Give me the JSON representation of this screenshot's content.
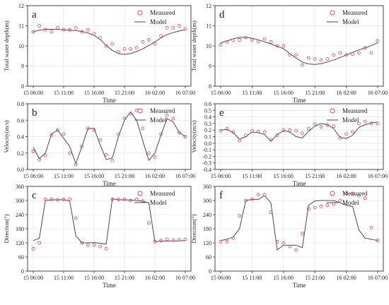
{
  "x_categories": [
    "15 06:00",
    "15 11:00",
    "15 16:00",
    "15 21:00",
    "16 02:00",
    "16 07:00"
  ],
  "chart_data": [
    {
      "type": "line",
      "panel_letter": "a",
      "xlabel": "Time",
      "ylabel": "Total water depth(m)",
      "ylim": [
        8,
        12
      ],
      "yticks": [
        "8",
        "9",
        "10",
        "11",
        "12"
      ],
      "legend": [
        "Measured",
        "Model"
      ],
      "legend_position": "top-right",
      "model": {
        "x": [
          0,
          1,
          2,
          3,
          4,
          5,
          6,
          7,
          8,
          9,
          10,
          11,
          12,
          13,
          14,
          15,
          16,
          17,
          18,
          19,
          20,
          21,
          22,
          23,
          24,
          25
        ],
        "y": [
          10.7,
          10.78,
          10.82,
          10.83,
          10.82,
          10.8,
          10.78,
          10.76,
          10.72,
          10.64,
          10.52,
          10.32,
          10.02,
          9.78,
          9.62,
          9.58,
          9.62,
          9.72,
          9.85,
          10.02,
          10.2,
          10.4,
          10.56,
          10.66,
          10.74,
          10.8
        ]
      },
      "measured": {
        "x": [
          0,
          1,
          2,
          3,
          4,
          5,
          6,
          7,
          8,
          9,
          10,
          11,
          12,
          13,
          14,
          15,
          16,
          17,
          18,
          19,
          20,
          21,
          22,
          23,
          24,
          25
        ],
        "y": [
          10.7,
          11.0,
          10.8,
          10.7,
          10.9,
          10.8,
          10.8,
          10.9,
          10.7,
          10.8,
          10.6,
          10.4,
          10.0,
          10.1,
          9.7,
          9.85,
          9.85,
          9.9,
          10.2,
          10.3,
          10.1,
          10.5,
          10.9,
          10.9,
          11.0,
          10.85
        ]
      }
    },
    {
      "type": "line",
      "panel_letter": "d",
      "xlabel": "Time",
      "ylabel": "Total water depth(m)",
      "ylim": [
        8,
        12
      ],
      "yticks": [
        "8",
        "9",
        "10",
        "11",
        "12"
      ],
      "legend": [
        "Measured",
        "Model"
      ],
      "legend_position": "top-right",
      "model": {
        "x": [
          0,
          1,
          2,
          3,
          4,
          5,
          6,
          7,
          8,
          9,
          10,
          11,
          12,
          13,
          14,
          15,
          16,
          17,
          18,
          19,
          20,
          21,
          22,
          23,
          24,
          25
        ],
        "y": [
          10.15,
          10.25,
          10.35,
          10.42,
          10.42,
          10.38,
          10.3,
          10.2,
          10.1,
          9.98,
          9.86,
          9.62,
          9.4,
          9.2,
          9.1,
          9.08,
          9.12,
          9.2,
          9.3,
          9.42,
          9.55,
          9.68,
          9.8,
          9.9,
          10.02,
          10.15
        ]
      },
      "measured": {
        "x": [
          0,
          1,
          2,
          3,
          4,
          5,
          6,
          7,
          8,
          9,
          10,
          11,
          12,
          13,
          14,
          15,
          16,
          17,
          18,
          19,
          20,
          21,
          22,
          23,
          24,
          25
        ],
        "y": [
          10.05,
          10.2,
          10.28,
          10.3,
          10.42,
          10.3,
          10.22,
          10.35,
          10.2,
          10.0,
          10.0,
          9.55,
          9.55,
          9.05,
          9.4,
          9.35,
          9.3,
          9.35,
          9.55,
          9.65,
          9.55,
          9.6,
          9.65,
          9.9,
          9.65,
          10.25
        ]
      }
    },
    {
      "type": "line",
      "panel_letter": "b",
      "xlabel": "Time",
      "ylabel": "Velocity(m/s)",
      "ylim": [
        0,
        0.8
      ],
      "yticks": [
        "0.0",
        "0.2",
        "0.4",
        "0.6",
        "0.8"
      ],
      "legend": [
        "Measured",
        "Model"
      ],
      "legend_position": "top-right",
      "model": {
        "x": [
          0,
          1,
          2,
          3,
          4,
          5,
          6,
          7,
          8,
          9,
          10,
          11,
          12,
          13,
          14,
          15,
          16,
          17,
          18,
          19,
          20,
          21,
          22,
          23,
          24,
          25
        ],
        "y": [
          0.27,
          0.13,
          0.2,
          0.43,
          0.48,
          0.38,
          0.28,
          0.07,
          0.28,
          0.5,
          0.5,
          0.3,
          0.12,
          0.14,
          0.4,
          0.6,
          0.7,
          0.6,
          0.35,
          0.11,
          0.2,
          0.42,
          0.62,
          0.58,
          0.45,
          0.4
        ]
      },
      "measured": {
        "x": [
          0,
          1,
          2,
          3,
          4,
          5,
          6,
          7,
          8,
          9,
          10,
          11,
          12,
          13,
          14,
          15,
          16,
          17,
          18,
          19,
          20,
          21,
          22,
          23,
          24,
          25
        ],
        "y": [
          0.22,
          0.12,
          0.17,
          0.42,
          0.48,
          0.43,
          0.2,
          0.06,
          0.28,
          0.5,
          0.48,
          0.36,
          0.18,
          0.11,
          0.43,
          0.62,
          0.68,
          0.72,
          0.5,
          0.2,
          0.15,
          0.43,
          0.66,
          0.62,
          0.45,
          0.4
        ]
      }
    },
    {
      "type": "line",
      "panel_letter": "e",
      "xlabel": "Time",
      "ylabel": "Velocity(m/s)",
      "ylim": [
        -0.4,
        0.6
      ],
      "yticks": [
        "-0.4",
        "-0.3",
        "-0.2",
        "-0.1",
        "0.0",
        "0.1",
        "0.2",
        "0.3",
        "0.4",
        "0.5",
        "0.6"
      ],
      "legend": [
        "Measured",
        "Model"
      ],
      "legend_position": "top-right",
      "model": {
        "x": [
          0,
          1,
          2,
          3,
          4,
          5,
          6,
          7,
          8,
          9,
          10,
          11,
          12,
          13,
          14,
          15,
          16,
          17,
          18,
          19,
          20,
          21,
          22,
          23,
          24,
          25
        ],
        "y": [
          0.2,
          0.21,
          0.16,
          0.06,
          0.1,
          0.17,
          0.16,
          0.13,
          0.03,
          0.13,
          0.19,
          0.17,
          0.1,
          0.08,
          0.18,
          0.26,
          0.3,
          0.28,
          0.22,
          0.09,
          0.07,
          0.12,
          0.24,
          0.28,
          0.31,
          0.32
        ]
      },
      "measured": {
        "x": [
          0,
          1,
          2,
          3,
          4,
          5,
          6,
          7,
          8,
          9,
          10,
          11,
          12,
          13,
          14,
          15,
          16,
          17,
          18,
          19,
          20,
          21,
          22,
          23,
          24,
          25
        ],
        "y": [
          0.19,
          0.22,
          0.17,
          0.04,
          0.12,
          0.19,
          0.18,
          0.17,
          0.05,
          0.12,
          0.2,
          0.2,
          0.19,
          0.15,
          0.22,
          0.29,
          0.25,
          0.28,
          0.26,
          0.08,
          0.14,
          0.17,
          0.3,
          0.33,
          0.3,
          0.3
        ]
      }
    },
    {
      "type": "line",
      "panel_letter": "c",
      "xlabel": "Time",
      "ylabel": "Direction(°)",
      "ylim": [
        0,
        360
      ],
      "yticks": [
        "0",
        "60",
        "120",
        "180",
        "240",
        "300",
        "360"
      ],
      "legend": [
        "Measured",
        "Model"
      ],
      "legend_position": "top-right",
      "model": {
        "x": [
          0,
          1,
          2,
          3,
          4,
          5,
          6,
          7,
          8,
          9,
          10,
          11,
          12,
          13,
          14,
          15,
          16,
          17,
          18,
          19,
          20,
          21,
          22,
          23,
          24,
          25
        ],
        "y": [
          130,
          140,
          300,
          303,
          303,
          303,
          298,
          150,
          120,
          120,
          121,
          118,
          115,
          307,
          303,
          303,
          302,
          300,
          297,
          290,
          125,
          128,
          128,
          128,
          128,
          130
        ]
      },
      "measured": {
        "x": [
          0,
          1,
          2,
          3,
          4,
          5,
          6,
          7,
          8,
          9,
          10,
          11,
          12,
          13,
          14,
          15,
          16,
          17,
          18,
          19,
          20,
          21,
          22,
          23,
          24,
          25
        ],
        "y": [
          95,
          120,
          305,
          305,
          303,
          305,
          305,
          225,
          120,
          110,
          112,
          105,
          95,
          305,
          305,
          305,
          300,
          305,
          298,
          205,
          125,
          130,
          135,
          132,
          133,
          135
        ]
      }
    },
    {
      "type": "line",
      "panel_letter": "f",
      "xlabel": "Time",
      "ylabel": "Direction(°)",
      "ylim": [
        0,
        360
      ],
      "yticks": [
        "0",
        "60",
        "120",
        "180",
        "240",
        "300",
        "360"
      ],
      "legend": [
        "Measured",
        "Model"
      ],
      "legend_position": "top-right",
      "model": {
        "x": [
          0,
          1,
          2,
          3,
          4,
          5,
          6,
          7,
          8,
          9,
          10,
          11,
          12,
          13,
          14,
          15,
          16,
          17,
          18,
          19,
          20,
          21,
          22,
          23,
          24,
          25
        ],
        "y": [
          130,
          135,
          145,
          180,
          300,
          305,
          305,
          320,
          290,
          90,
          110,
          110,
          110,
          100,
          280,
          298,
          300,
          300,
          300,
          290,
          280,
          275,
          175,
          140,
          135,
          130
        ]
      },
      "measured": {
        "x": [
          0,
          1,
          2,
          3,
          4,
          5,
          6,
          7,
          8,
          9,
          10,
          11,
          12,
          13,
          14,
          15,
          16,
          17,
          18,
          19,
          20,
          21,
          22,
          23,
          24,
          25
        ],
        "y": [
          125,
          125,
          140,
          235,
          300,
          305,
          325,
          325,
          250,
          125,
          120,
          105,
          90,
          160,
          265,
          270,
          275,
          280,
          285,
          300,
          330,
          330,
          320,
          310,
          185,
          130
        ]
      }
    }
  ]
}
